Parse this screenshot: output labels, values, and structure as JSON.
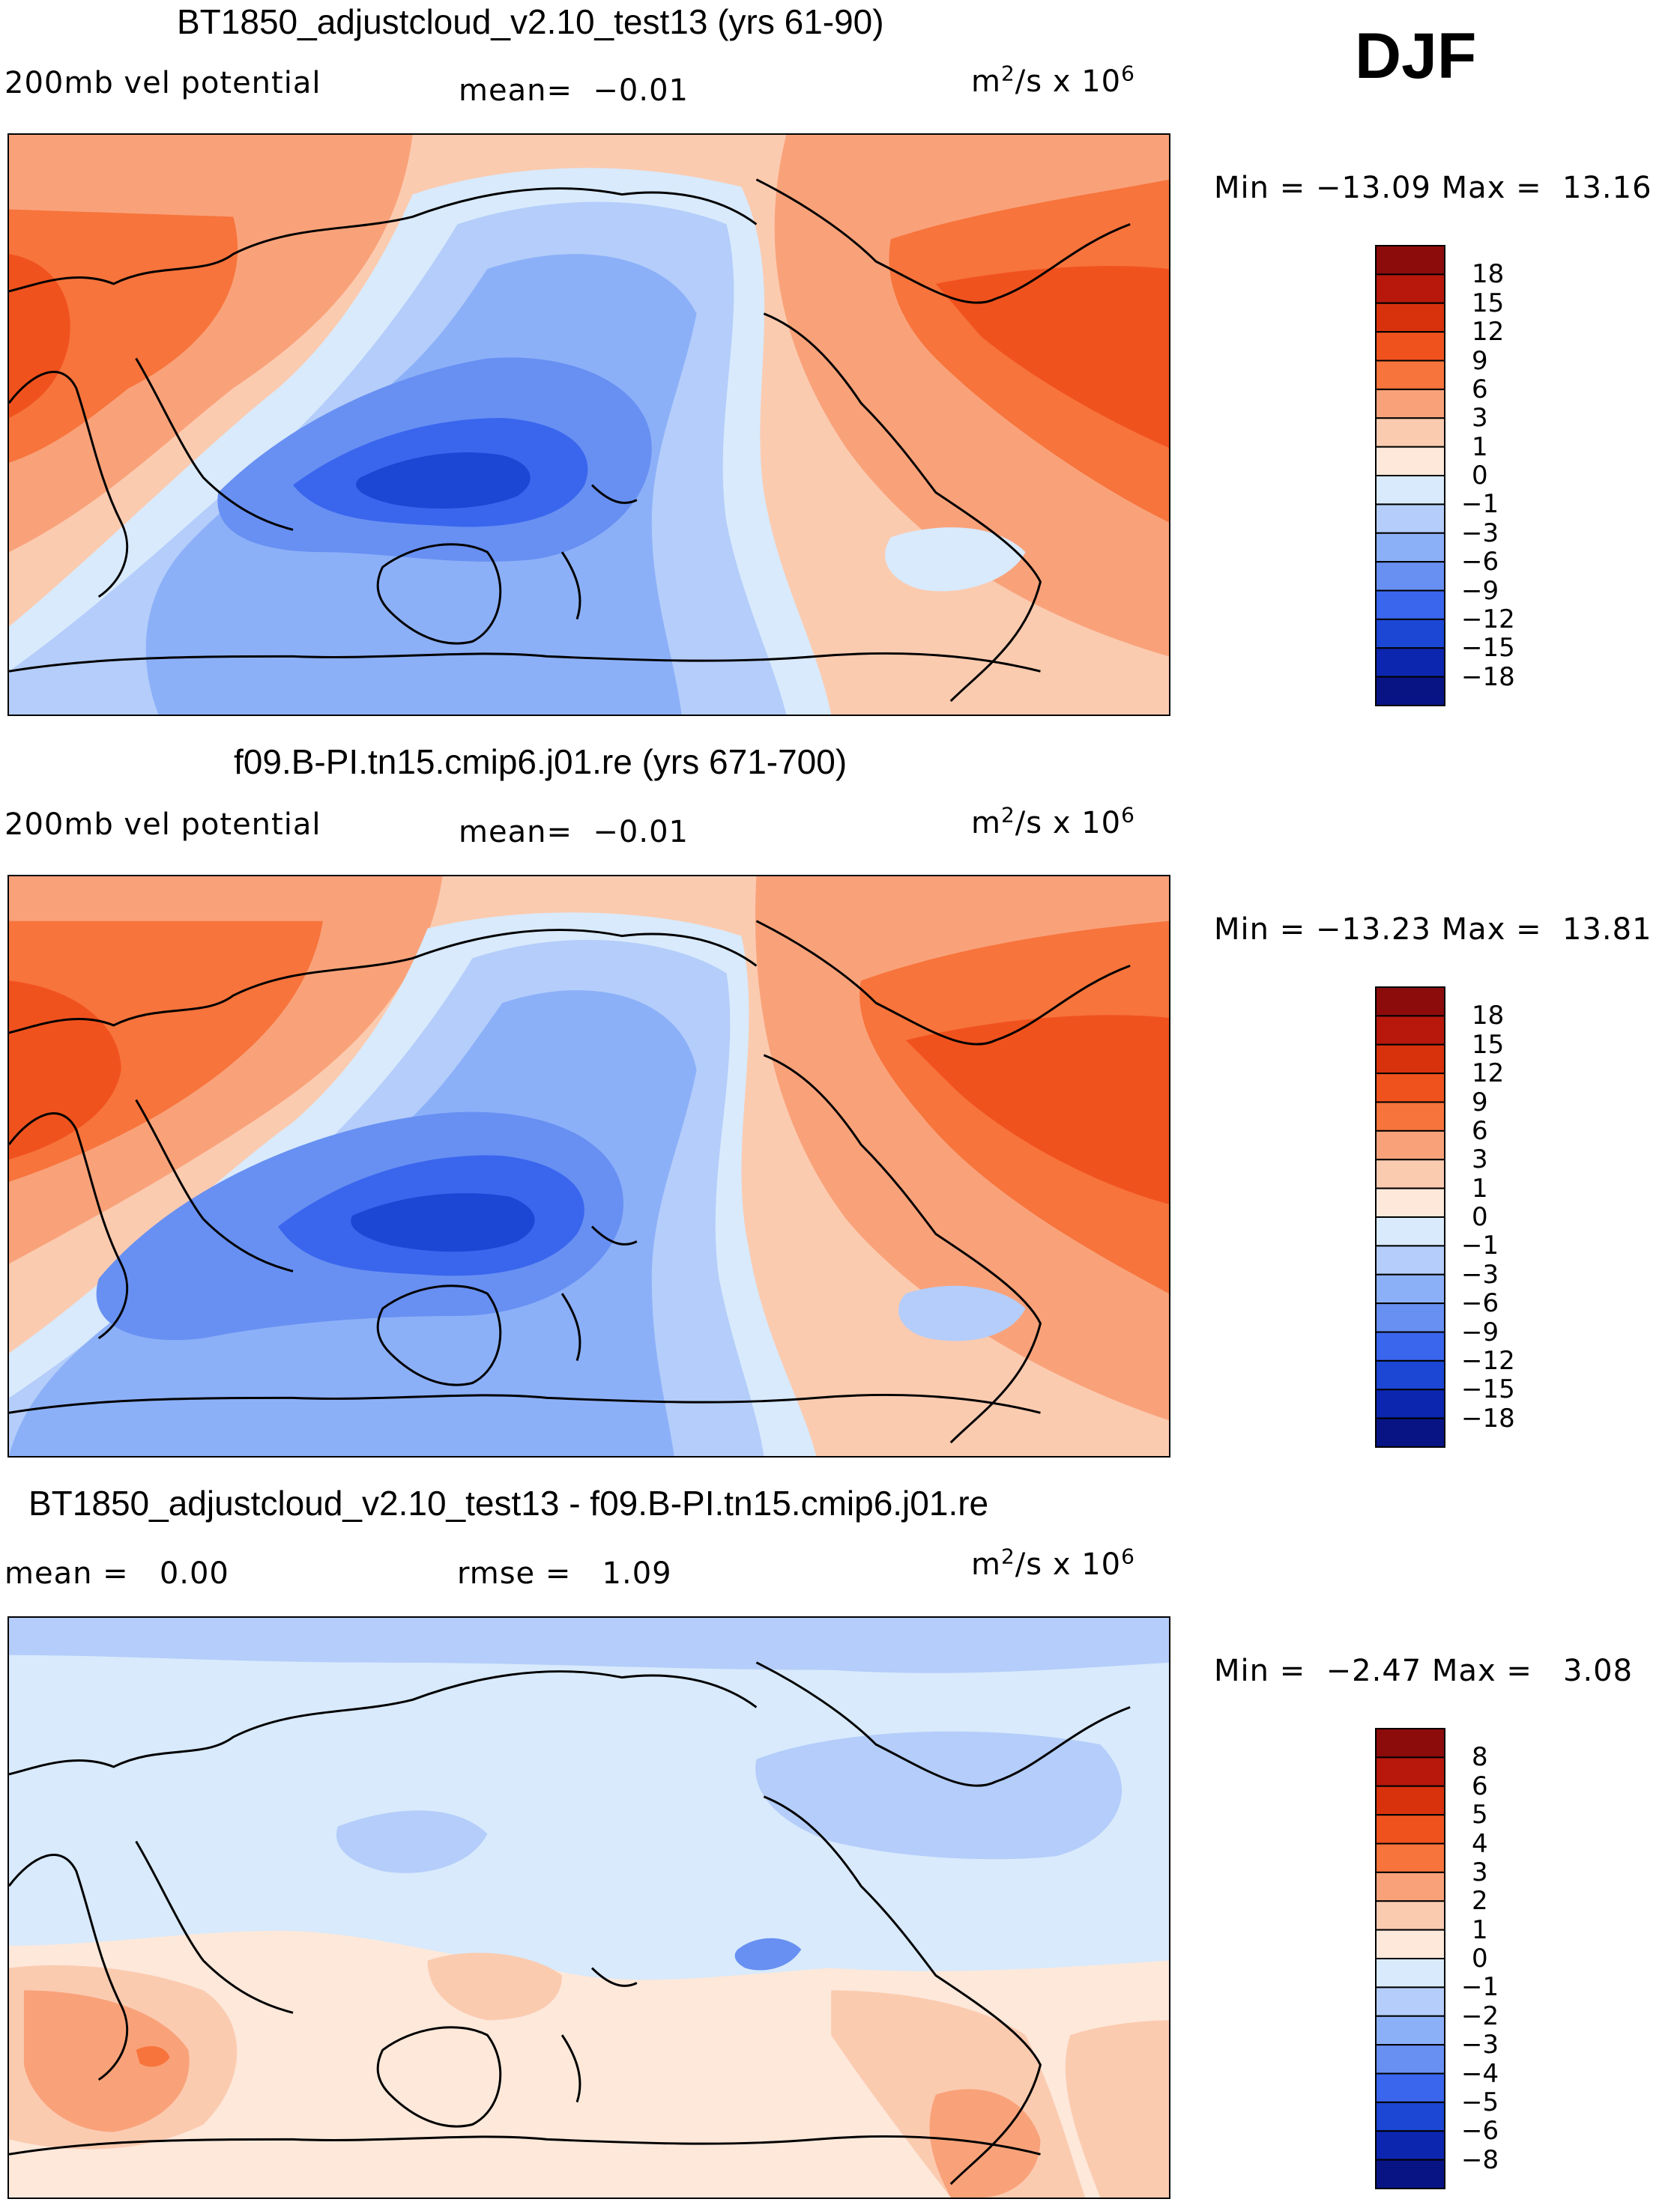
{
  "season": "DJF",
  "units_base": "m",
  "units_exp": "2",
  "units_rest": "/s x 10",
  "units_exp2": "6",
  "panels": [
    {
      "title": "BT1850_adjustcloud_v2.10_test13 (yrs 61-90)",
      "left_label": "200mb vel potential",
      "center_label": "mean=  −0.01",
      "minmax": "Min = −13.09 Max =  13.16",
      "colorbar": {
        "levels": [
          "18",
          "15",
          "12",
          "9",
          "6",
          "3",
          "1",
          "0",
          "−1",
          "−3",
          "−6",
          "−9",
          "−12",
          "−15",
          "−18"
        ],
        "colors": [
          "#8c0c0c",
          "#b8180c",
          "#d8320c",
          "#f0521e",
          "#f7743c",
          "#f9a27a",
          "#fbcbb0",
          "#fde8da",
          "#d8eafc",
          "#b4cdfa",
          "#8cb0f8",
          "#6890f2",
          "#3a66ee",
          "#1c46d4",
          "#0c26b0",
          "#081484"
        ]
      }
    },
    {
      "title": "f09.B-PI.tn15.cmip6.j01.re (yrs 671-700)",
      "left_label": "200mb vel potential",
      "center_label": "mean=  −0.01",
      "minmax": "Min = −13.23 Max =  13.81",
      "colorbar": {
        "levels": [
          "18",
          "15",
          "12",
          "9",
          "6",
          "3",
          "1",
          "0",
          "−1",
          "−3",
          "−6",
          "−9",
          "−12",
          "−15",
          "−18"
        ],
        "colors": [
          "#8c0c0c",
          "#b8180c",
          "#d8320c",
          "#f0521e",
          "#f7743c",
          "#f9a27a",
          "#fbcbb0",
          "#fde8da",
          "#d8eafc",
          "#b4cdfa",
          "#8cb0f8",
          "#6890f2",
          "#3a66ee",
          "#1c46d4",
          "#0c26b0",
          "#081484"
        ]
      }
    },
    {
      "title": "BT1850_adjustcloud_v2.10_test13 - f09.B-PI.tn15.cmip6.j01.re",
      "left_label": "mean =   0.00",
      "center_label": "rmse =   1.09",
      "minmax": "Min =  −2.47 Max =   3.08",
      "colorbar": {
        "levels": [
          "8",
          "6",
          "5",
          "4",
          "3",
          "2",
          "1",
          "0",
          "−1",
          "−2",
          "−3",
          "−4",
          "−5",
          "−6",
          "−8"
        ],
        "colors": [
          "#8c0c0c",
          "#b8180c",
          "#d8320c",
          "#f0521e",
          "#f7743c",
          "#f9a27a",
          "#fbcbb0",
          "#fde8da",
          "#d8eafc",
          "#b4cdfa",
          "#8cb0f8",
          "#6890f2",
          "#3a66ee",
          "#1c46d4",
          "#0c26b0",
          "#081484"
        ]
      }
    }
  ],
  "chart_data": [
    {
      "type": "heatmap",
      "title": "BT1850_adjustcloud_v2.10_test13 (yrs 61-90)",
      "variable": "200mb vel potential",
      "units": "m2/s x 10^6",
      "mean": -0.01,
      "min": -13.09,
      "max": 13.16,
      "contour_levels": [
        -18,
        -15,
        -12,
        -9,
        -6,
        -3,
        -1,
        0,
        1,
        3,
        6,
        9,
        12,
        15,
        18
      ]
    },
    {
      "type": "heatmap",
      "title": "f09.B-PI.tn15.cmip6.j01.re (yrs 671-700)",
      "variable": "200mb vel potential",
      "units": "m2/s x 10^6",
      "mean": -0.01,
      "min": -13.23,
      "max": 13.81,
      "contour_levels": [
        -18,
        -15,
        -12,
        -9,
        -6,
        -3,
        -1,
        0,
        1,
        3,
        6,
        9,
        12,
        15,
        18
      ]
    },
    {
      "type": "heatmap",
      "title": "BT1850_adjustcloud_v2.10_test13 - f09.B-PI.tn15.cmip6.j01.re",
      "units": "m2/s x 10^6",
      "mean": 0.0,
      "rmse": 1.09,
      "min": -2.47,
      "max": 3.08,
      "contour_levels": [
        -8,
        -6,
        -5,
        -4,
        -3,
        -2,
        -1,
        0,
        1,
        2,
        3,
        4,
        5,
        6,
        8
      ]
    }
  ]
}
